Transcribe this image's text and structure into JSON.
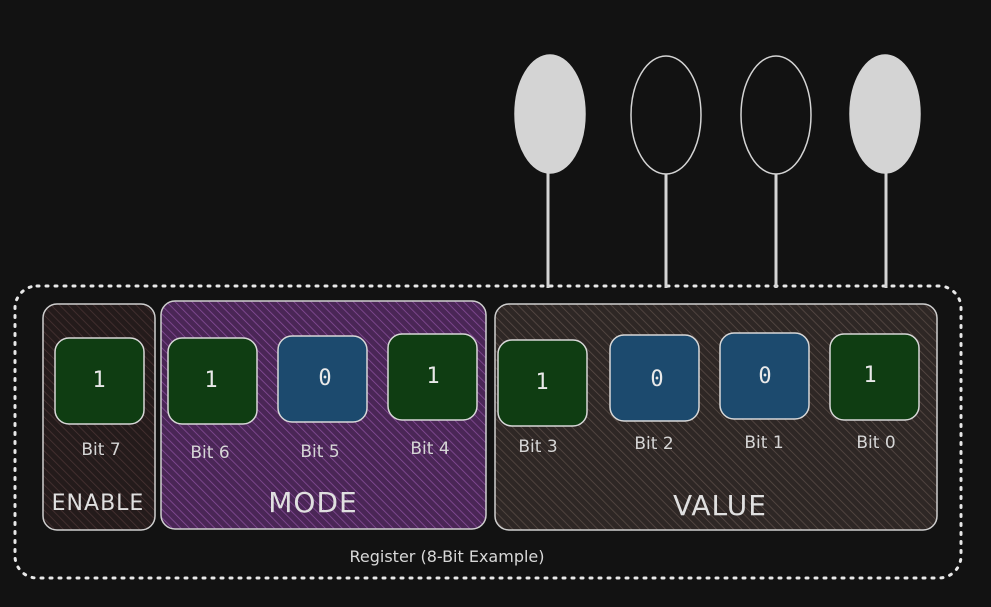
{
  "register": {
    "caption": "Register (8-Bit Example)"
  },
  "groups": [
    {
      "label": "ENABLE",
      "fill": "#2a1f1f"
    },
    {
      "label": "MODE",
      "fill": "#5a2d6a"
    },
    {
      "label": "VALUE",
      "fill": "#3a3230"
    }
  ],
  "bits": [
    {
      "label": "Bit 7",
      "value": "1",
      "group": "ENABLE"
    },
    {
      "label": "Bit 6",
      "value": "1",
      "group": "MODE"
    },
    {
      "label": "Bit 5",
      "value": "0",
      "group": "MODE"
    },
    {
      "label": "Bit 4",
      "value": "1",
      "group": "MODE"
    },
    {
      "label": "Bit 3",
      "value": "1",
      "group": "VALUE"
    },
    {
      "label": "Bit 2",
      "value": "0",
      "group": "VALUE"
    },
    {
      "label": "Bit 1",
      "value": "0",
      "group": "VALUE"
    },
    {
      "label": "Bit 0",
      "value": "1",
      "group": "VALUE"
    }
  ],
  "lamps": [
    {
      "bit": "Bit 3",
      "state": "on"
    },
    {
      "bit": "Bit 2",
      "state": "off"
    },
    {
      "bit": "Bit 1",
      "state": "off"
    },
    {
      "bit": "Bit 0",
      "state": "on"
    }
  ],
  "colors": {
    "background": "#121212",
    "bit_one": "#0f3d12",
    "bit_zero": "#1c4a6e",
    "bit_border": "#d8d8d8",
    "lamp_on": "#d4d4d4",
    "lamp_off": "#121212",
    "outline": "#e8e8e8"
  }
}
